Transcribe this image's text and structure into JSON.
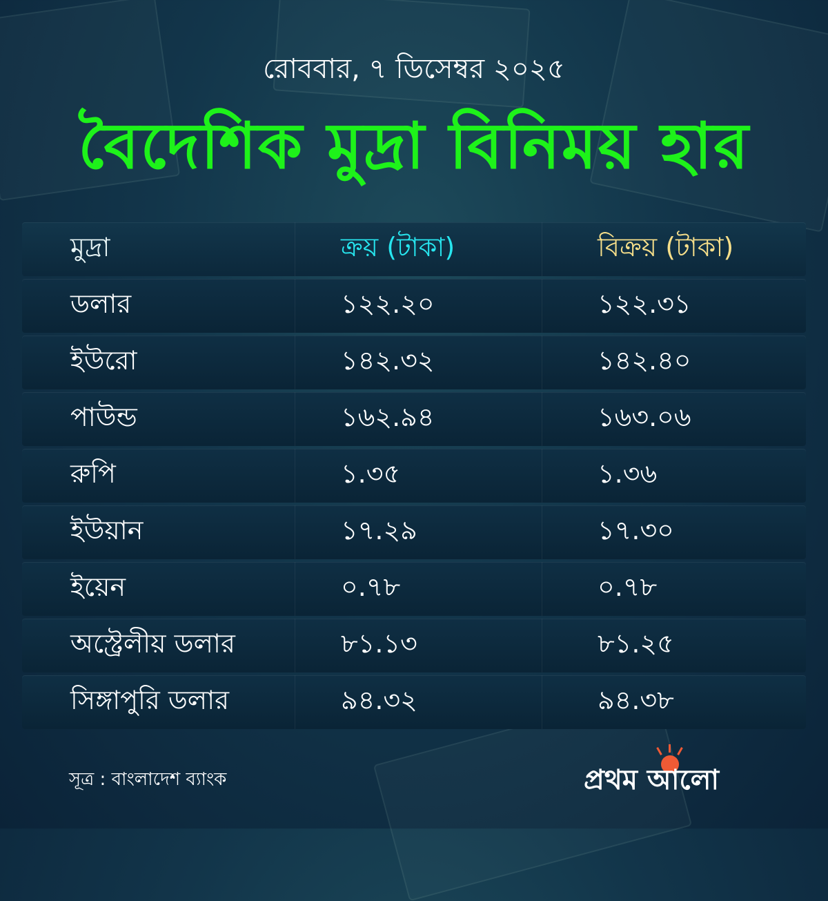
{
  "date": "রোববার, ৭ ডিসেম্বর ২০২৫",
  "title": "বৈদেশিক মুদ্রা বিনিময় হার",
  "colors": {
    "title": "#1ef21a",
    "buy_header": "#27e6ef",
    "sell_header": "#f7df8a",
    "background": "#12354a"
  },
  "table": {
    "headers": [
      "মুদ্রা",
      "ক্রয় (টাকা)",
      "বিক্রয় (টাকা)"
    ],
    "rows": [
      {
        "currency": "ডলার",
        "buy": "১২২.২০",
        "sell": "১২২.৩১"
      },
      {
        "currency": "ইউরো",
        "buy": "১৪২.৩২",
        "sell": "১৪২.৪০"
      },
      {
        "currency": "পাউন্ড",
        "buy": "১৬২.৯৪",
        "sell": "১৬৩.০৬"
      },
      {
        "currency": "রুপি",
        "buy": "১.৩৫",
        "sell": "১.৩৬"
      },
      {
        "currency": "ইউয়ান",
        "buy": "১৭.২৯",
        "sell": "১৭.৩০"
      },
      {
        "currency": "ইয়েন",
        "buy": "০.৭৮",
        "sell": "০.৭৮"
      },
      {
        "currency": "অস্ট্রেলীয় ডলার",
        "buy": "৮১.১৩",
        "sell": "৮১.২৫"
      },
      {
        "currency": "সিঙ্গাপুরি ডলার",
        "buy": "৯৪.৩২",
        "sell": "৯৪.৩৮"
      }
    ]
  },
  "source": "সূত্র : বাংলাদেশ ব্যাংক",
  "logo": {
    "text": "প্রথম আলো",
    "icon": "sun-icon",
    "sun_color": "#ef5a35"
  }
}
